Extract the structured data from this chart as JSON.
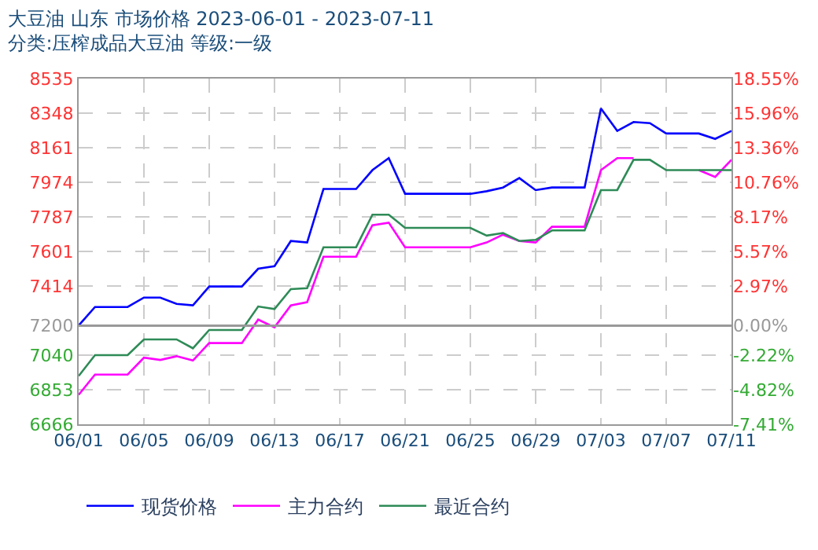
{
  "chart_data": {
    "type": "line",
    "title": "大豆油 山东 市场价格 2023-06-01 - 2023-07-11",
    "subtitle": "分类:压榨成品大豆油 等级:一级",
    "x": [
      "2023-06-01",
      "2023-06-02",
      "2023-06-03",
      "2023-06-04",
      "2023-06-05",
      "2023-06-06",
      "2023-06-07",
      "2023-06-08",
      "2023-06-09",
      "2023-06-10",
      "2023-06-11",
      "2023-06-12",
      "2023-06-13",
      "2023-06-14",
      "2023-06-15",
      "2023-06-16",
      "2023-06-17",
      "2023-06-18",
      "2023-06-19",
      "2023-06-20",
      "2023-06-21",
      "2023-06-22",
      "2023-06-23",
      "2023-06-24",
      "2023-06-25",
      "2023-06-26",
      "2023-06-27",
      "2023-06-28",
      "2023-06-29",
      "2023-06-30",
      "2023-07-01",
      "2023-07-02",
      "2023-07-03",
      "2023-07-04",
      "2023-07-05",
      "2023-07-06",
      "2023-07-07",
      "2023-07-08",
      "2023-07-09",
      "2023-07-10",
      "2023-07-11"
    ],
    "series": [
      {
        "name": "现货价格",
        "color": "#0000ff",
        "values": [
          7200,
          7300,
          7300,
          7300,
          7351,
          7351,
          7317,
          7309,
          7411,
          7411,
          7411,
          7507,
          7521,
          7657,
          7649,
          7938,
          7938,
          7938,
          8040,
          8105,
          7912,
          7912,
          7912,
          7912,
          7912,
          7926,
          7946,
          7997,
          7932,
          7946,
          7946,
          7946,
          8374,
          8252,
          8300,
          8294,
          8238,
          8238,
          8238,
          8209,
          8252
        ]
      },
      {
        "name": "主力合约",
        "color": "#ff00ff",
        "values": [
          6825,
          6935,
          6935,
          6935,
          7026,
          7014,
          7034,
          7011,
          7105,
          7105,
          7105,
          7232,
          7190,
          7309,
          7326,
          7572,
          7572,
          7572,
          7742,
          7756,
          7623,
          7623,
          7623,
          7623,
          7623,
          7649,
          7691,
          7657,
          7649,
          7734,
          7734,
          7734,
          8040,
          8105,
          8105,
          null,
          null,
          null,
          8040,
          8003,
          8096
        ]
      },
      {
        "name": "最近合约",
        "color": "#2e8b57",
        "values": [
          6927,
          7040,
          7040,
          7040,
          7125,
          7125,
          7125,
          7077,
          7176,
          7176,
          7176,
          7303,
          7289,
          7397,
          7402,
          7623,
          7623,
          7623,
          7799,
          7799,
          7728,
          7728,
          7728,
          7728,
          7728,
          7686,
          7700,
          7657,
          7663,
          7714,
          7714,
          7714,
          7932,
          7932,
          8096,
          8096,
          8040,
          8040,
          8040,
          8040,
          8040
        ]
      }
    ],
    "xlim": [
      "2023-06-01",
      "2023-07-11"
    ],
    "xticks": [
      {
        "value": "2023-06-01",
        "label": "06/01"
      },
      {
        "value": "2023-06-05",
        "label": "06/05"
      },
      {
        "value": "2023-06-09",
        "label": "06/09"
      },
      {
        "value": "2023-06-13",
        "label": "06/13"
      },
      {
        "value": "2023-06-17",
        "label": "06/17"
      },
      {
        "value": "2023-06-21",
        "label": "06/21"
      },
      {
        "value": "2023-06-25",
        "label": "06/25"
      },
      {
        "value": "2023-06-29",
        "label": "06/29"
      },
      {
        "value": "2023-07-03",
        "label": "07/03"
      },
      {
        "value": "2023-07-07",
        "label": "07/07"
      },
      {
        "value": "2023-07-11",
        "label": "07/11"
      }
    ],
    "ylim": [
      6666,
      8535
    ],
    "yticks": [
      6666,
      6853,
      7040,
      7200,
      7414,
      7601,
      7787,
      7974,
      8161,
      8348,
      8535
    ],
    "y2lim": [
      -7.41,
      18.55
    ],
    "y2ticks": [
      {
        "value": -7.41,
        "label": "-7.41%"
      },
      {
        "value": -4.82,
        "label": "-4.82%"
      },
      {
        "value": -2.22,
        "label": "-2.22%"
      },
      {
        "value": 0,
        "label": "0.00%"
      },
      {
        "value": 2.97,
        "label": "2.97%"
      },
      {
        "value": 5.57,
        "label": "5.57%"
      },
      {
        "value": 8.17,
        "label": "8.17%"
      },
      {
        "value": 10.76,
        "label": "10.76%"
      },
      {
        "value": 13.36,
        "label": "13.36%"
      },
      {
        "value": 15.96,
        "label": "15.96%"
      },
      {
        "value": 18.55,
        "label": "18.55%"
      }
    ],
    "ref_lines": [
      {
        "axis": "y2",
        "value": 0,
        "color": "#999999",
        "line_style": "solid"
      }
    ],
    "grid": true,
    "legend": "bottom",
    "marker": "none",
    "line_style": "solid"
  }
}
